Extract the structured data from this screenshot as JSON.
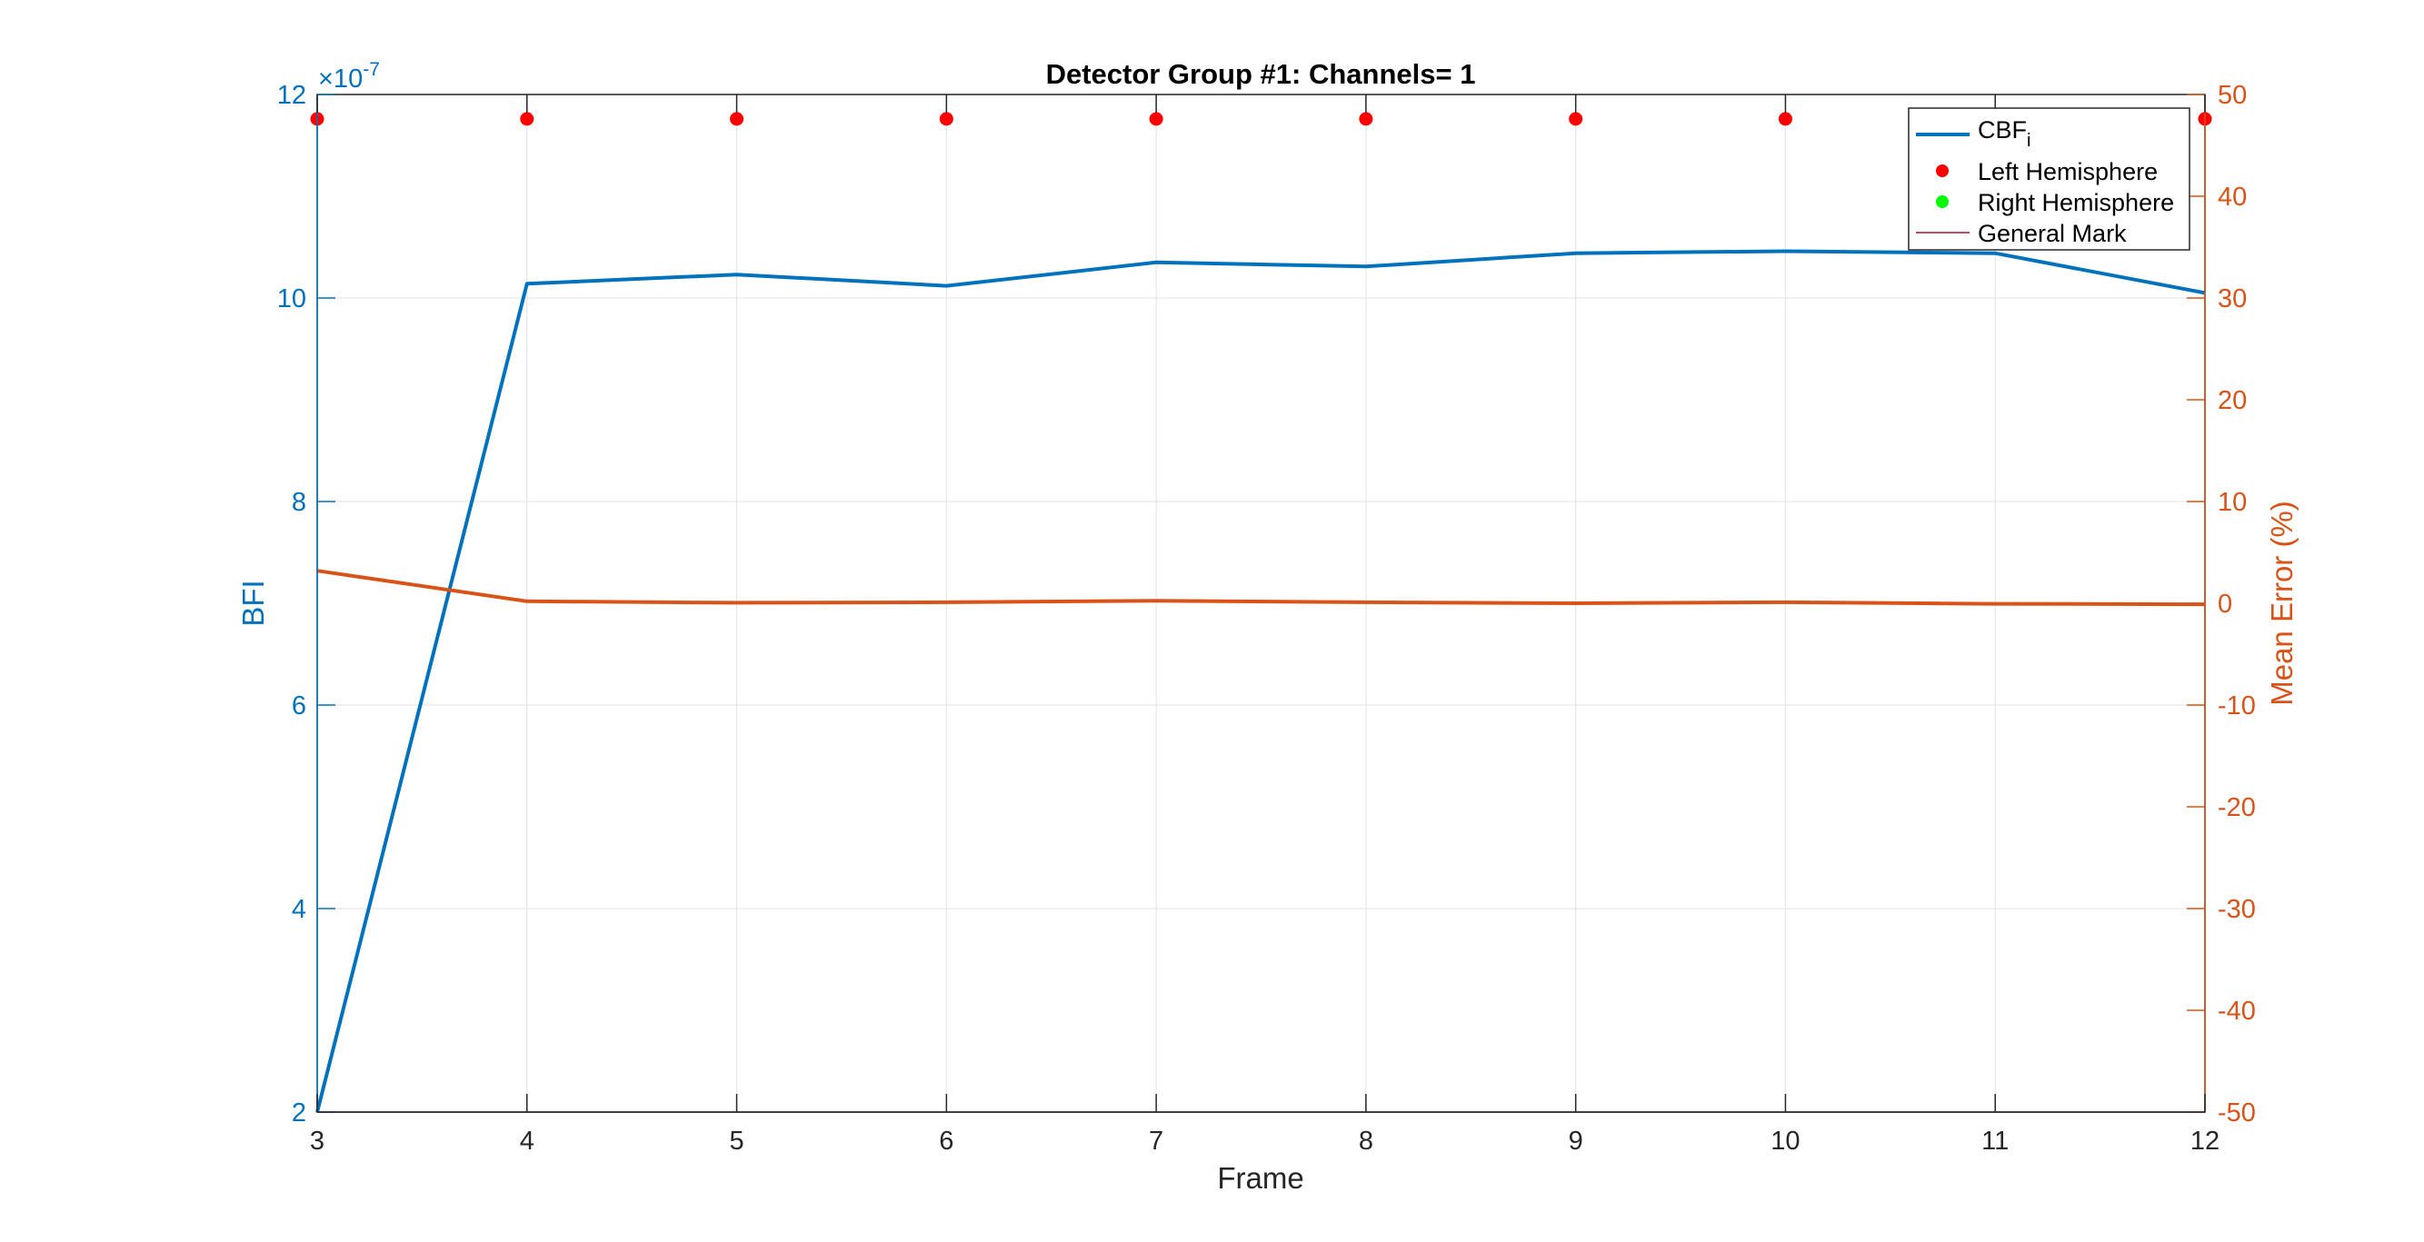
{
  "chart_data": {
    "type": "line",
    "title": "Detector Group #1: Channels= 1",
    "xlabel": "Frame",
    "ylabel_left": "BFI",
    "ylabel_right": "Mean Error (%)",
    "x": [
      3,
      4,
      5,
      6,
      7,
      8,
      9,
      10,
      11,
      12
    ],
    "xlim": [
      3,
      12
    ],
    "xticks": [
      3,
      4,
      5,
      6,
      7,
      8,
      9,
      10,
      11,
      12
    ],
    "ylim_left": [
      2,
      12
    ],
    "yticks_left": [
      2,
      4,
      6,
      8,
      10,
      12
    ],
    "left_exponent": {
      "base": "×10",
      "power": "-7"
    },
    "ylim_right": [
      -50,
      50
    ],
    "yticks_right": [
      -50,
      -40,
      -30,
      -20,
      -10,
      0,
      10,
      20,
      30,
      40,
      50
    ],
    "grid": true,
    "legend_position": "top-right",
    "colors": {
      "left_axis": "#0072bd",
      "right_axis": "#d95319",
      "bfi_line": "#0072bd",
      "error_line": "#d95319",
      "left_marker": "#ff0000",
      "right_marker": "#00ff00",
      "general_mark": "#a2142f",
      "grid": "#e6e6e6"
    },
    "series": [
      {
        "name": "CBF",
        "name_sub": "i",
        "axis": "left",
        "values": [
          2.0,
          10.14,
          10.23,
          10.12,
          10.35,
          10.31,
          10.44,
          10.46,
          10.44,
          10.05
        ]
      },
      {
        "axis": "right",
        "values": [
          3.2,
          0.2,
          0.05,
          0.1,
          0.25,
          0.1,
          0.0,
          0.1,
          -0.05,
          -0.1
        ]
      },
      {
        "name": "Left Hemisphere",
        "type": "markers",
        "axis": "right",
        "x": [
          3,
          4,
          5,
          6,
          7,
          8,
          9,
          10,
          12
        ],
        "values": [
          47.6,
          47.6,
          47.6,
          47.6,
          47.6,
          47.6,
          47.6,
          47.6,
          47.6
        ]
      },
      {
        "name": "Right Hemisphere",
        "type": "markers",
        "axis": "right",
        "x": [],
        "values": []
      },
      {
        "name": "General Mark",
        "type": "line",
        "axis": "right",
        "x": [],
        "values": []
      }
    ]
  }
}
